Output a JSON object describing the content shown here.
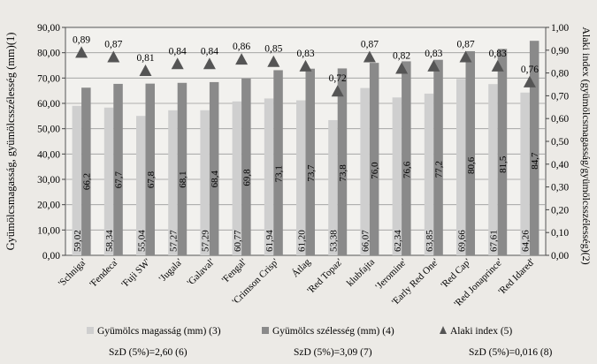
{
  "chart_data": {
    "type": "bar",
    "categories": [
      "'Schniga'",
      "'Fendeca'",
      "'Fuji SW'",
      "'Jugala'",
      "'Galaval'",
      "'Fengal'",
      "'Crimson Crisp'",
      "Átlag",
      "'Red Topaz'",
      "klubfajta",
      "'Jeromine'",
      "'Early Red One'",
      "'Red Cap'",
      "'Red Jonaprince'",
      "'Red Idared'"
    ],
    "series": [
      {
        "name": "Gyümölcs magasság (mm) (3)",
        "axis": "left",
        "color": "#cfcfcf",
        "values": [
          59.02,
          58.34,
          55.04,
          57.27,
          57.29,
          60.77,
          61.94,
          61.2,
          53.38,
          66.07,
          62.34,
          63.85,
          69.66,
          67.61,
          64.26
        ],
        "labels": [
          "59,02",
          "58,34",
          "55,04",
          "57,27",
          "57,29",
          "60,77",
          "61,94",
          "61,20",
          "53,38",
          "66,07",
          "62,34",
          "63,85",
          "69,66",
          "67,61",
          "64,26"
        ]
      },
      {
        "name": "Gyümölcs szélesség (mm) (4)",
        "axis": "left",
        "color": "#8a8a8a",
        "values": [
          66.2,
          67.7,
          67.8,
          68.1,
          68.4,
          69.8,
          73.1,
          73.7,
          73.8,
          76.0,
          76.6,
          77.2,
          80.6,
          81.5,
          84.7
        ],
        "labels": [
          "66,2",
          "67,7",
          "67,8",
          "68,1",
          "68,4",
          "69,8",
          "73,1",
          "73,7",
          "73,8",
          "76,0",
          "76,6",
          "77,2",
          "80,6",
          "81,5",
          "84,7"
        ]
      },
      {
        "name": "Alaki index (5)",
        "axis": "right",
        "marker": "triangle",
        "color": "#555555",
        "values": [
          0.89,
          0.87,
          0.81,
          0.84,
          0.84,
          0.86,
          0.85,
          0.83,
          0.72,
          0.87,
          0.82,
          0.83,
          0.87,
          0.83,
          0.76
        ],
        "labels": [
          "0,89",
          "0,87",
          "0,81",
          "0,84",
          "0,84",
          "0,86",
          "0,85",
          "0,83",
          "0,72",
          "0,87",
          "0,82",
          "0,83",
          "0,87",
          "0,83",
          "0,76"
        ]
      }
    ],
    "ylabel": "Gyümölcsmagasság, gyümölcsszélesség (mm)(1)",
    "y2label": "Alaki index (gyümölcsmagasság/gyümölcsszélesség)(2)",
    "ylim": [
      0,
      90
    ],
    "y2lim": [
      0,
      1
    ],
    "yticks": [
      "0,00",
      "10,00",
      "20,00",
      "30,00",
      "40,00",
      "50,00",
      "60,00",
      "70,00",
      "80,00",
      "90,00"
    ],
    "y2ticks": [
      "0,00",
      "0,10",
      "0,20",
      "0,30",
      "0,40",
      "0,50",
      "0,60",
      "0,70",
      "0,80",
      "0,90",
      "1,00"
    ],
    "grid": true,
    "legend_position": "bottom",
    "sd_notes": [
      "SzD (5%)=2,60 (6)",
      "SzD (5%)=3,09 (7)",
      "SzD (5%)=0,016 (8)"
    ]
  }
}
